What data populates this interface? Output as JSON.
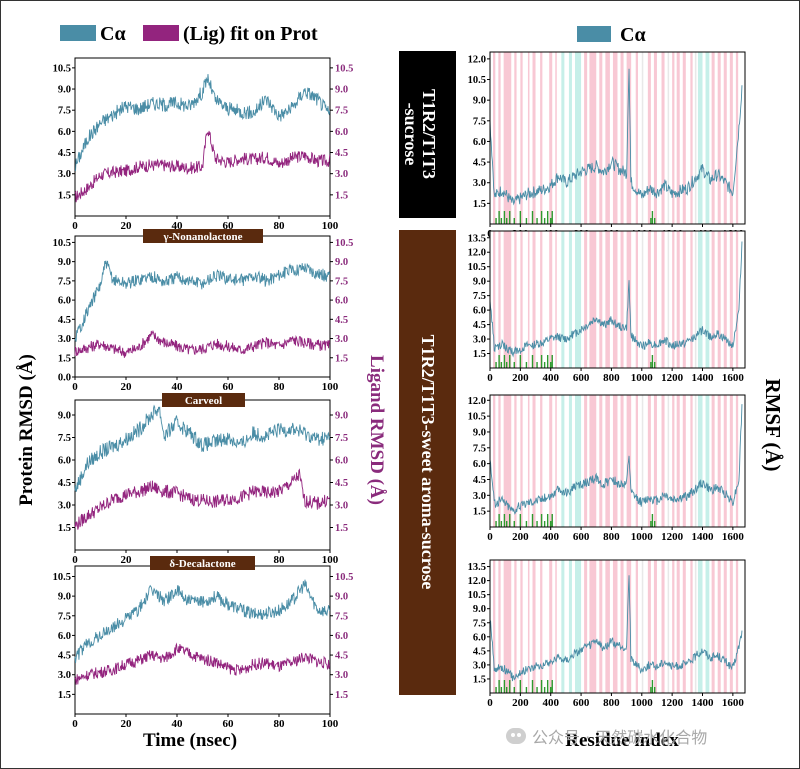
{
  "colors": {
    "protein": "#4a8da6",
    "ligand": "#93247e",
    "ligand_axis": "#8a2b7c",
    "box_black": "#000000",
    "box_brown": "#5a2a0e",
    "alpha_band": "#f5b5c5",
    "beta_band": "#aee8df",
    "contact_marks": "#2f9a2f"
  },
  "legend_left": {
    "protein_label": "Cα",
    "ligand_label": "(Lig) fit on Prot"
  },
  "legend_right": {
    "label": "Cα"
  },
  "axis_labels": {
    "protein_rmsd": "Protein RMSD (Å)",
    "ligand_rmsd": "Ligand RMSD (Å)",
    "time": "Time (nsec)",
    "rmsf": "RMSF (Å)",
    "residue": "Residue index"
  },
  "group_labels": {
    "control_line1": "T1R2/T1T3",
    "control_line2": "-sucrose",
    "aroma": "T1R2/T1T3-sweet aroma-sucrose"
  },
  "watermark": "公众号 · 天然碳水化合物",
  "chart_data": [
    {
      "type": "line",
      "panel": "rmsd-1",
      "title": "",
      "xlabel": "Time (nsec)",
      "ylabel": "Protein RMSD (Å)",
      "y2label": "Ligand RMSD (Å)",
      "xlim": [
        0,
        100
      ],
      "ylim": [
        0,
        11.2
      ],
      "y2lim": [
        0,
        11.2
      ],
      "xticks": [
        0,
        20,
        40,
        60,
        80,
        100
      ],
      "yticks": [
        1.5,
        3.0,
        4.5,
        6.0,
        7.5,
        9.0,
        10.5
      ],
      "y2ticks": [
        1.5,
        3.0,
        4.5,
        6.0,
        7.5,
        9.0,
        10.5
      ],
      "series": [
        {
          "name": "Cα",
          "axis": "left",
          "x": [
            0,
            5,
            10,
            15,
            20,
            25,
            30,
            35,
            40,
            45,
            50,
            52,
            55,
            60,
            65,
            70,
            75,
            80,
            85,
            90,
            95,
            100
          ],
          "y": [
            3.5,
            5.5,
            6.6,
            7.2,
            7.8,
            7.6,
            8.0,
            7.9,
            8.0,
            7.8,
            8.8,
            9.8,
            8.2,
            7.6,
            7.4,
            7.3,
            8.3,
            7.1,
            7.6,
            8.9,
            8.3,
            7.2
          ]
        },
        {
          "name": "(Lig) fit on Prot",
          "axis": "right",
          "x": [
            0,
            5,
            10,
            15,
            20,
            25,
            30,
            35,
            40,
            45,
            50,
            52,
            55,
            60,
            65,
            70,
            75,
            80,
            85,
            90,
            95,
            100
          ],
          "y": [
            1.3,
            2.0,
            2.9,
            3.1,
            3.2,
            3.5,
            3.6,
            3.6,
            3.5,
            3.4,
            3.5,
            6.3,
            4.1,
            3.8,
            4.1,
            4.0,
            4.2,
            3.7,
            4.1,
            4.3,
            3.9,
            3.9
          ]
        }
      ]
    },
    {
      "type": "line",
      "panel": "rmsd-2",
      "title": "γ-Nonanolactone",
      "xlabel": "Time (nsec)",
      "ylabel": "Protein RMSD (Å)",
      "y2label": "Ligand RMSD (Å)",
      "xlim": [
        0,
        100
      ],
      "ylim": [
        0,
        11.0
      ],
      "y2lim": [
        0,
        11.0
      ],
      "xticks": [
        0,
        20,
        40,
        60,
        80,
        100
      ],
      "yticks": [
        0.0,
        1.5,
        3.0,
        4.5,
        6.0,
        7.5,
        9.0,
        10.5
      ],
      "y2ticks": [
        1.5,
        3.0,
        4.5,
        6.0,
        7.5,
        9.0,
        10.5
      ],
      "series": [
        {
          "name": "Cα",
          "axis": "left",
          "x": [
            0,
            5,
            10,
            12,
            15,
            20,
            25,
            30,
            35,
            40,
            45,
            50,
            55,
            60,
            65,
            70,
            75,
            80,
            85,
            90,
            95,
            100
          ],
          "y": [
            3.0,
            5.2,
            7.2,
            8.9,
            7.6,
            7.3,
            7.6,
            7.9,
            7.4,
            7.8,
            7.5,
            7.3,
            7.9,
            7.7,
            7.5,
            7.9,
            7.5,
            8.0,
            8.3,
            8.6,
            8.1,
            7.8
          ]
        },
        {
          "name": "(Lig) fit on Prot",
          "axis": "right",
          "x": [
            0,
            5,
            10,
            15,
            20,
            25,
            30,
            35,
            40,
            45,
            50,
            55,
            60,
            65,
            70,
            75,
            80,
            85,
            90,
            95,
            100
          ],
          "y": [
            2.0,
            2.3,
            2.6,
            2.2,
            1.9,
            2.3,
            3.3,
            2.7,
            2.4,
            2.1,
            2.2,
            2.6,
            2.4,
            2.1,
            2.4,
            2.7,
            2.4,
            2.9,
            2.7,
            2.5,
            2.4
          ]
        }
      ]
    },
    {
      "type": "line",
      "panel": "rmsd-3",
      "title": "Carveol",
      "xlabel": "Time (nsec)",
      "ylabel": "Protein RMSD (Å)",
      "y2label": "Ligand RMSD (Å)",
      "xlim": [
        0,
        100
      ],
      "ylim": [
        0,
        10.0
      ],
      "y2lim": [
        0,
        10.0
      ],
      "xticks": [
        0,
        20,
        40,
        60,
        80,
        100
      ],
      "yticks": [
        1.5,
        3.0,
        4.5,
        6.0,
        7.5,
        9.0
      ],
      "y2ticks": [
        1.5,
        3.0,
        4.5,
        6.0,
        7.5,
        9.0
      ],
      "series": [
        {
          "name": "Cα",
          "axis": "left",
          "x": [
            0,
            5,
            10,
            15,
            20,
            25,
            30,
            33,
            35,
            40,
            45,
            50,
            55,
            60,
            65,
            70,
            75,
            80,
            85,
            90,
            95,
            100
          ],
          "y": [
            4.0,
            5.8,
            6.5,
            6.9,
            7.4,
            8.0,
            9.0,
            9.5,
            7.6,
            8.5,
            7.8,
            7.0,
            7.2,
            7.5,
            7.0,
            7.8,
            7.6,
            8.0,
            8.1,
            7.8,
            7.4,
            7.5
          ]
        },
        {
          "name": "(Lig) fit on Prot",
          "axis": "right",
          "x": [
            0,
            5,
            10,
            15,
            20,
            25,
            30,
            35,
            40,
            45,
            50,
            55,
            60,
            65,
            70,
            75,
            80,
            85,
            88,
            90,
            95,
            100
          ],
          "y": [
            1.6,
            2.3,
            2.8,
            3.4,
            3.7,
            3.9,
            4.2,
            3.9,
            3.8,
            3.4,
            3.3,
            3.2,
            3.4,
            3.5,
            3.9,
            3.8,
            3.9,
            4.5,
            5.0,
            3.3,
            3.1,
            3.4
          ]
        }
      ]
    },
    {
      "type": "line",
      "panel": "rmsd-4",
      "title": "δ-Decalactone",
      "xlabel": "Time (nsec)",
      "ylabel": "Protein RMSD (Å)",
      "y2label": "Ligand RMSD (Å)",
      "xlim": [
        0,
        100
      ],
      "ylim": [
        0,
        11.3
      ],
      "y2lim": [
        0,
        11.3
      ],
      "xticks": [
        0,
        20,
        40,
        60,
        80,
        100
      ],
      "yticks": [
        1.5,
        3.0,
        4.5,
        6.0,
        7.5,
        9.0,
        10.5
      ],
      "y2ticks": [
        1.5,
        3.0,
        4.5,
        6.0,
        7.5,
        9.0,
        10.5
      ],
      "series": [
        {
          "name": "Cα",
          "axis": "left",
          "x": [
            0,
            5,
            10,
            15,
            20,
            25,
            30,
            35,
            40,
            45,
            50,
            55,
            60,
            65,
            70,
            75,
            80,
            85,
            90,
            95,
            100
          ],
          "y": [
            4.3,
            5.4,
            6.0,
            6.6,
            7.3,
            8.0,
            9.5,
            8.7,
            9.4,
            8.6,
            8.5,
            9.0,
            8.4,
            8.0,
            7.6,
            7.7,
            7.9,
            8.6,
            9.9,
            8.0,
            7.8
          ]
        },
        {
          "name": "(Lig) fit on Prot",
          "axis": "right",
          "x": [
            0,
            5,
            10,
            15,
            20,
            25,
            30,
            35,
            40,
            45,
            50,
            55,
            60,
            65,
            70,
            75,
            80,
            85,
            90,
            95,
            100
          ],
          "y": [
            2.6,
            3.0,
            3.2,
            3.4,
            3.8,
            4.1,
            4.5,
            4.2,
            5.0,
            4.6,
            4.2,
            4.0,
            3.5,
            3.3,
            3.8,
            3.9,
            3.6,
            3.9,
            4.4,
            4.0,
            3.8
          ]
        }
      ]
    },
    {
      "type": "line",
      "panel": "rmsf-1",
      "xlabel": "Residue index",
      "ylabel": "RMSF (Å)",
      "xlim": [
        0,
        1680
      ],
      "ylim": [
        0,
        12.5
      ],
      "xticks": [
        0,
        200,
        400,
        600,
        800,
        1000,
        1200,
        1400,
        1600
      ],
      "yticks": [
        1.5,
        3.0,
        4.5,
        6.0,
        7.5,
        9.0,
        10.5,
        12.0
      ],
      "series": [
        {
          "name": "Cα",
          "x": [
            0,
            30,
            80,
            150,
            250,
            350,
            400,
            450,
            500,
            560,
            600,
            650,
            700,
            750,
            800,
            850,
            900,
            915,
            930,
            1000,
            1050,
            1100,
            1150,
            1200,
            1300,
            1400,
            1450,
            1500,
            1550,
            1600,
            1640,
            1660
          ],
          "y": [
            7.5,
            2.0,
            2.5,
            1.5,
            2.2,
            2.5,
            2.8,
            3.5,
            3.0,
            3.5,
            3.8,
            4.0,
            4.2,
            3.8,
            4.5,
            4.0,
            3.7,
            11.5,
            3.0,
            2.0,
            2.6,
            2.3,
            2.8,
            2.2,
            2.6,
            4.0,
            3.2,
            3.6,
            3.0,
            2.3,
            7.0,
            10.0
          ]
        }
      ]
    },
    {
      "type": "line",
      "panel": "rmsf-2",
      "xlabel": "Residue index",
      "ylabel": "RMSF (Å)",
      "xlim": [
        0,
        1680
      ],
      "ylim": [
        0,
        14.2
      ],
      "xticks": [
        0,
        200,
        400,
        600,
        800,
        1000,
        1200,
        1400,
        1600
      ],
      "yticks": [
        1.5,
        3.0,
        4.5,
        6.0,
        7.5,
        9.0,
        10.5,
        12.0,
        13.5
      ],
      "series": [
        {
          "name": "Cα",
          "x": [
            0,
            30,
            80,
            150,
            250,
            350,
            400,
            450,
            500,
            560,
            600,
            650,
            700,
            750,
            800,
            850,
            900,
            915,
            930,
            1000,
            1050,
            1100,
            1150,
            1200,
            1300,
            1400,
            1450,
            1500,
            1550,
            1600,
            1640,
            1660
          ],
          "y": [
            7.0,
            2.0,
            2.4,
            1.6,
            2.3,
            2.6,
            3.0,
            3.2,
            3.0,
            3.6,
            4.0,
            4.5,
            5.2,
            4.4,
            5.0,
            4.3,
            4.2,
            8.8,
            3.3,
            2.2,
            2.6,
            2.4,
            2.9,
            2.3,
            2.7,
            3.9,
            3.3,
            3.5,
            3.0,
            2.4,
            6.0,
            13.0
          ]
        }
      ]
    },
    {
      "type": "line",
      "panel": "rmsf-3",
      "xlabel": "Residue index",
      "ylabel": "RMSF (Å)",
      "xlim": [
        0,
        1680
      ],
      "ylim": [
        0,
        12.5
      ],
      "xticks": [
        0,
        200,
        400,
        600,
        800,
        1000,
        1200,
        1400,
        1600
      ],
      "yticks": [
        1.5,
        3.0,
        4.5,
        6.0,
        7.5,
        9.0,
        10.5,
        12.0
      ],
      "series": [
        {
          "name": "Cα",
          "x": [
            0,
            30,
            80,
            150,
            250,
            350,
            400,
            450,
            500,
            560,
            600,
            650,
            700,
            750,
            800,
            850,
            900,
            915,
            930,
            1000,
            1050,
            1100,
            1150,
            1200,
            1300,
            1400,
            1450,
            1500,
            1550,
            1600,
            1640,
            1660
          ],
          "y": [
            6.5,
            2.2,
            2.6,
            1.6,
            2.4,
            2.7,
            3.0,
            3.5,
            3.2,
            3.8,
            4.0,
            4.3,
            4.6,
            4.0,
            4.6,
            4.1,
            4.0,
            6.8,
            3.2,
            2.3,
            2.8,
            2.5,
            3.1,
            2.6,
            2.9,
            4.2,
            3.5,
            3.7,
            3.2,
            2.4,
            4.5,
            11.5
          ]
        }
      ]
    },
    {
      "type": "line",
      "panel": "rmsf-4",
      "xlabel": "Residue index",
      "ylabel": "RMSF (Å)",
      "xlim": [
        0,
        1680
      ],
      "ylim": [
        0,
        14.2
      ],
      "xticks": [
        0,
        200,
        400,
        600,
        800,
        1000,
        1200,
        1400,
        1600
      ],
      "yticks": [
        1.5,
        3.0,
        4.5,
        6.0,
        7.5,
        9.0,
        10.5,
        12.0,
        13.5
      ],
      "series": [
        {
          "name": "Cα",
          "x": [
            0,
            30,
            80,
            150,
            250,
            350,
            400,
            450,
            500,
            560,
            600,
            650,
            700,
            750,
            800,
            850,
            900,
            915,
            930,
            1000,
            1050,
            1100,
            1150,
            1200,
            1300,
            1400,
            1450,
            1500,
            1550,
            1600,
            1640,
            1660
          ],
          "y": [
            8.0,
            2.5,
            2.8,
            1.7,
            2.6,
            3.0,
            3.3,
            3.8,
            3.5,
            4.2,
            4.6,
            5.0,
            5.5,
            4.7,
            5.6,
            5.0,
            4.7,
            13.0,
            3.6,
            2.5,
            3.0,
            2.8,
            3.4,
            2.8,
            3.1,
            4.6,
            3.8,
            4.0,
            3.4,
            2.6,
            5.0,
            6.5
          ]
        }
      ]
    }
  ]
}
